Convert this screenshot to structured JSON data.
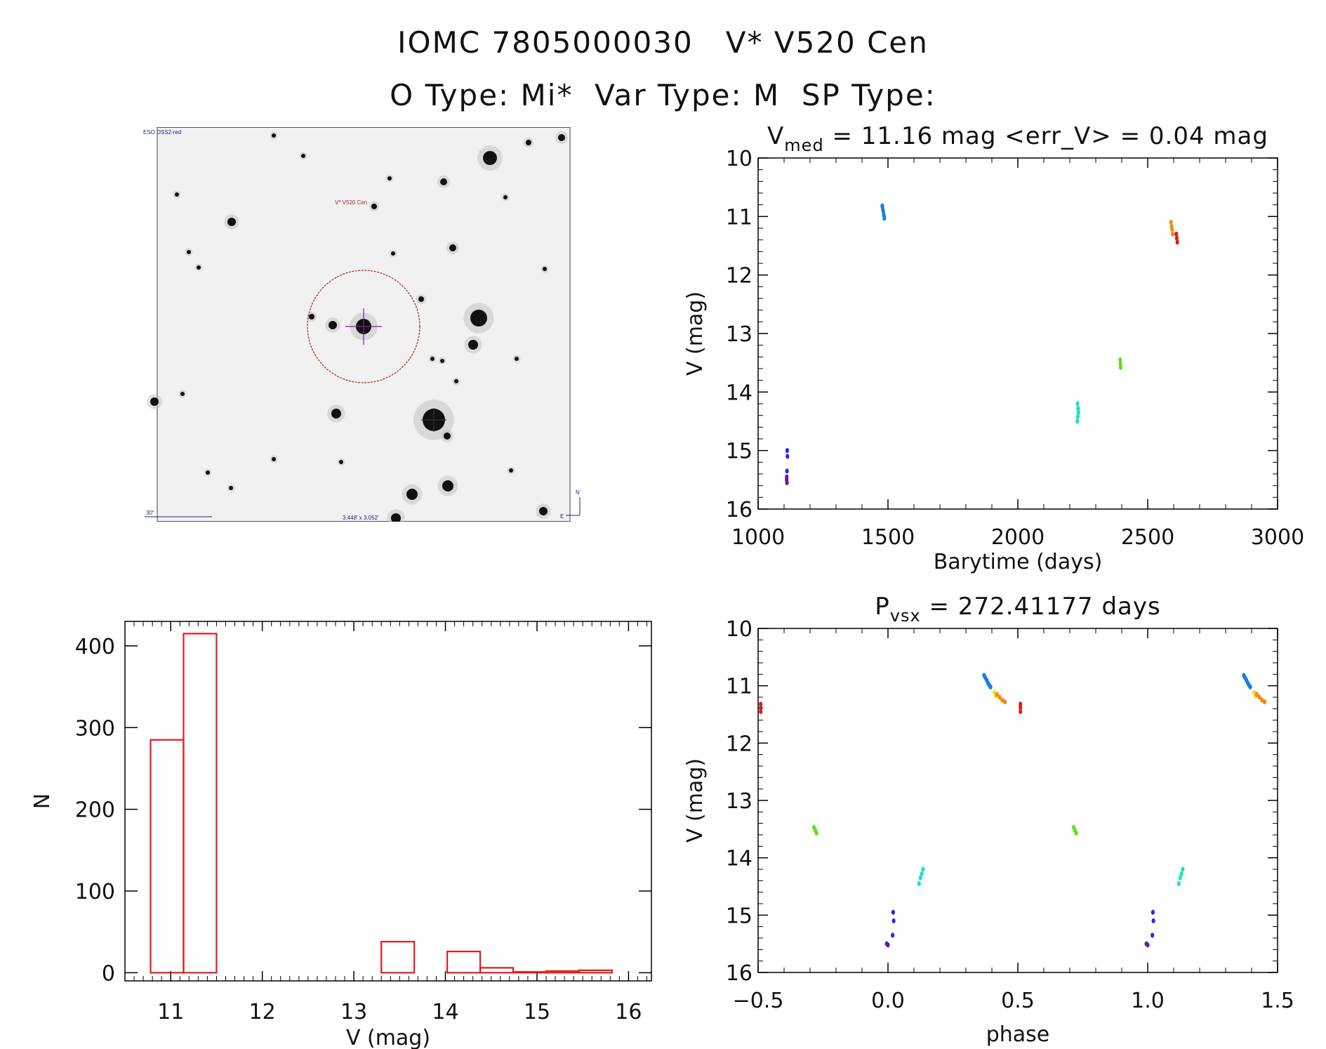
{
  "header": {
    "title": "IOMC 7805000030   V* V520 Cen",
    "subtitle": "O Type: Mi*  Var Type: M  SP Type:"
  },
  "finder": {
    "survey_label": "ESO DSS2-red",
    "target_label": "V* V520 Cen",
    "scale_label": "30\"",
    "fov_label": "3.448' x 3.052'",
    "north_label": "N",
    "east_label": "E",
    "circle_color": "#b22222",
    "cross_color": "#7b1fa2"
  },
  "chart_data": [
    {
      "id": "lightcurve",
      "type": "scatter",
      "title_main": "V",
      "title_sub": "med",
      "title_rest": " = 11.16 mag <err_V> = 0.04 mag",
      "xlabel": "Barytime (days)",
      "ylabel": "V (mag)",
      "xlim": [
        1000,
        3000
      ],
      "ylim": [
        16,
        10
      ],
      "xticks": [
        1000,
        1500,
        2000,
        2500,
        3000
      ],
      "yticks": [
        10,
        11,
        12,
        13,
        14,
        15,
        16
      ],
      "series": [
        {
          "color": "#5e1fa6",
          "x": [
            1110,
            1110,
            1111
          ],
          "y": [
            15.45,
            15.5,
            15.55
          ]
        },
        {
          "color": "#2b2bd9",
          "x": [
            1112,
            1113,
            1111
          ],
          "y": [
            15.0,
            15.1,
            15.35
          ]
        },
        {
          "color": "#1a7fe0",
          "x": [
            1478,
            1480,
            1482,
            1484,
            1486
          ],
          "y": [
            10.82,
            10.87,
            10.92,
            10.98,
            11.03
          ]
        },
        {
          "color": "#1de0c8",
          "x": [
            2230,
            2232,
            2233,
            2231,
            2229
          ],
          "y": [
            14.2,
            14.28,
            14.35,
            14.42,
            14.5
          ]
        },
        {
          "color": "#66dd22",
          "x": [
            2394,
            2395,
            2396
          ],
          "y": [
            13.45,
            13.52,
            13.58
          ]
        },
        {
          "color": "#f28a1c",
          "x": [
            2590,
            2592,
            2594,
            2596
          ],
          "y": [
            11.1,
            11.17,
            11.22,
            11.3
          ]
        },
        {
          "color": "#d91f1f",
          "x": [
            2610,
            2612,
            2614
          ],
          "y": [
            11.3,
            11.37,
            11.44
          ]
        }
      ]
    },
    {
      "id": "phased",
      "type": "scatter",
      "title_main": "P",
      "title_sub": "vsx",
      "title_rest": " = 272.41177 days",
      "xlabel": "phase",
      "ylabel": "V (mag)",
      "xlim": [
        -0.5,
        1.5
      ],
      "ylim": [
        16,
        10
      ],
      "xticks": [
        -0.5,
        0.0,
        0.5,
        1.0,
        1.5
      ],
      "yticks": [
        10,
        11,
        12,
        13,
        14,
        15,
        16
      ],
      "series": [
        {
          "color": "#d91f1f",
          "x": [
            -0.49,
            -0.49,
            -0.49,
            0.51,
            0.51,
            0.51
          ],
          "y": [
            11.32,
            11.38,
            11.45,
            11.32,
            11.38,
            11.45
          ]
        },
        {
          "color": "#66dd22",
          "x": [
            -0.285,
            -0.28,
            -0.275,
            0.715,
            0.72,
            0.725
          ],
          "y": [
            13.47,
            13.52,
            13.57,
            13.47,
            13.52,
            13.57
          ]
        },
        {
          "color": "#5e1fa6",
          "x": [
            -0.005,
            0.0,
            0.995,
            1.0
          ],
          "y": [
            15.5,
            15.52,
            15.5,
            15.52
          ]
        },
        {
          "color": "#2b2bd9",
          "x": [
            0.02,
            0.022,
            0.018,
            1.02,
            1.022,
            1.018
          ],
          "y": [
            14.95,
            15.1,
            15.35,
            14.95,
            15.1,
            15.35
          ]
        },
        {
          "color": "#1de0c8",
          "x": [
            0.12,
            0.125,
            0.13,
            0.135,
            1.12,
            1.125,
            1.13,
            1.135
          ],
          "y": [
            14.45,
            14.35,
            14.28,
            14.2,
            14.45,
            14.35,
            14.28,
            14.2
          ]
        },
        {
          "color": "#1a7fe0",
          "x": [
            0.37,
            0.375,
            0.38,
            0.385,
            0.39,
            0.395,
            1.37,
            1.375,
            1.38,
            1.385,
            1.39,
            1.395
          ],
          "y": [
            10.82,
            10.86,
            10.9,
            10.95,
            10.99,
            11.02,
            10.82,
            10.86,
            10.9,
            10.95,
            10.99,
            11.02
          ]
        },
        {
          "color": "#e8e020",
          "x": [
            0.41,
            0.415,
            1.41,
            1.415
          ],
          "y": [
            11.12,
            11.18,
            11.12,
            11.18
          ]
        },
        {
          "color": "#f28a1c",
          "x": [
            0.42,
            0.43,
            0.44,
            0.45,
            1.42,
            1.43,
            1.44,
            1.45
          ],
          "y": [
            11.15,
            11.2,
            11.25,
            11.28,
            11.15,
            11.2,
            11.25,
            11.28
          ]
        }
      ]
    },
    {
      "id": "histogram",
      "type": "bar",
      "xlabel": "V (mag)",
      "ylabel": "N",
      "xlim": [
        10.5,
        16.25
      ],
      "ylim": [
        -10,
        430
      ],
      "xticks": [
        11,
        12,
        13,
        14,
        15,
        16
      ],
      "yticks": [
        0,
        100,
        200,
        300,
        400
      ],
      "bar_color": "#e31a1c",
      "bins": [
        {
          "x0": 10.78,
          "x1": 11.14,
          "n": 285
        },
        {
          "x0": 11.14,
          "x1": 11.5,
          "n": 415
        },
        {
          "x0": 11.5,
          "x1": 11.86,
          "n": 0
        },
        {
          "x0": 11.86,
          "x1": 12.22,
          "n": 0
        },
        {
          "x0": 12.22,
          "x1": 12.58,
          "n": 0
        },
        {
          "x0": 12.58,
          "x1": 12.94,
          "n": 0
        },
        {
          "x0": 12.94,
          "x1": 13.3,
          "n": 0
        },
        {
          "x0": 13.3,
          "x1": 13.66,
          "n": 38
        },
        {
          "x0": 13.66,
          "x1": 14.02,
          "n": 0
        },
        {
          "x0": 14.02,
          "x1": 14.38,
          "n": 26
        },
        {
          "x0": 14.38,
          "x1": 14.74,
          "n": 6
        },
        {
          "x0": 14.74,
          "x1": 15.1,
          "n": 1
        },
        {
          "x0": 15.1,
          "x1": 15.46,
          "n": 2
        },
        {
          "x0": 15.46,
          "x1": 15.82,
          "n": 3
        }
      ]
    }
  ]
}
